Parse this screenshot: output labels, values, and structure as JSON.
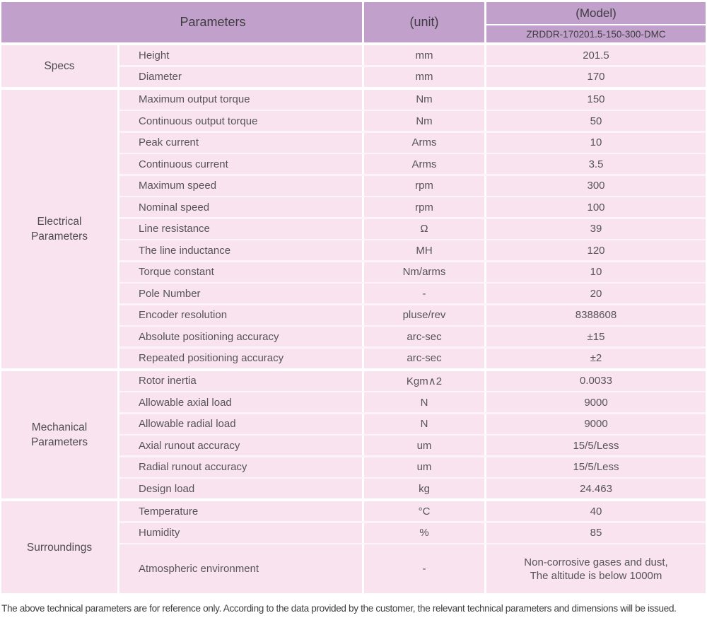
{
  "header": {
    "parameters_label": "Parameters",
    "unit_label": "(unit)",
    "model_label": "(Model)",
    "model_value": "ZRDDR-170201.5-150-300-DMC"
  },
  "sections": [
    {
      "label_lines": [
        "Specs"
      ],
      "rows": [
        {
          "name": "Height",
          "unit": "mm",
          "value": "201.5"
        },
        {
          "name": "Diameter",
          "unit": "mm",
          "value": "170"
        }
      ]
    },
    {
      "label_lines": [
        "Electrical",
        "Parameters"
      ],
      "rows": [
        {
          "name": "Maximum output torque",
          "unit": "Nm",
          "value": "150"
        },
        {
          "name": "Continuous output torque",
          "unit": "Nm",
          "value": "50"
        },
        {
          "name": "Peak current",
          "unit": "Arms",
          "value": "10"
        },
        {
          "name": "Continuous current",
          "unit": "Arms",
          "value": "3.5"
        },
        {
          "name": "Maximum speed",
          "unit": "rpm",
          "value": "300"
        },
        {
          "name": "Nominal speed",
          "unit": "rpm",
          "value": "100"
        },
        {
          "name": "Line resistance",
          "unit": "Ω",
          "value": "39"
        },
        {
          "name": "The line inductance",
          "unit": "MH",
          "value": "120"
        },
        {
          "name": "Torque constant",
          "unit": "Nm/arms",
          "value": "10"
        },
        {
          "name": "Pole Number",
          "unit": "-",
          "value": "20"
        },
        {
          "name": "Encoder resolution",
          "unit": "pluse/rev",
          "value": "8388608"
        },
        {
          "name": "Absolute positioning accuracy",
          "unit": "arc-sec",
          "value": "±15"
        },
        {
          "name": "Repeated positioning accuracy",
          "unit": "arc-sec",
          "value": "±2"
        }
      ]
    },
    {
      "label_lines": [
        "Mechanical",
        "Parameters"
      ],
      "rows": [
        {
          "name": "Rotor inertia",
          "unit": "Kgm∧2",
          "value": "0.0033"
        },
        {
          "name": "Allowable axial load",
          "unit": "N",
          "value": "9000"
        },
        {
          "name": "Allowable radial load",
          "unit": "N",
          "value": "9000"
        },
        {
          "name": "Axial runout accuracy",
          "unit": "um",
          "value": "15/5/Less"
        },
        {
          "name": "Radial runout accuracy",
          "unit": "um",
          "value": "15/5/Less"
        },
        {
          "name": "Design load",
          "unit": "kg",
          "value": "24.463"
        }
      ]
    },
    {
      "label_lines": [
        "Surroundings"
      ],
      "rows": [
        {
          "name": "Temperature",
          "unit": "°C",
          "value": "40"
        },
        {
          "name": "Humidity",
          "unit": "%",
          "value": "85"
        },
        {
          "name": "Atmospheric environment",
          "unit": "-",
          "value": [
            "Non-corrosive gases and dust,",
            "The altitude is below 1000m"
          ]
        }
      ]
    }
  ],
  "footer": {
    "note": "The above technical parameters are for reference only. According to the data provided by the customer, the relevant technical parameters and dimensions will be issued."
  },
  "colors": {
    "header_bg": "#c2a0cc",
    "row_bg": "#f9e3ee",
    "row_separator": "#fdf4f9",
    "column_separator": "#ffffff",
    "header_text": "#3d3b3e",
    "row_text": "#565457"
  }
}
